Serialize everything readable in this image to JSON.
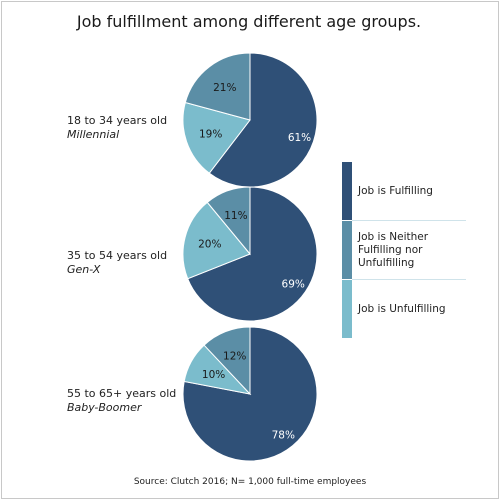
{
  "title": "Job fulfillment among different age groups.",
  "source": "Source:  Clutch 2016; N= 1,000 full-time employees",
  "colors": {
    "fulfilling": "#2f5077",
    "neither": "#5b8ea6",
    "unfulfilling": "#7bbccc",
    "stroke": "#ffffff"
  },
  "chart_data": {
    "type": "pie",
    "categories": [
      "Job is Fulfilling",
      "Job is Neither Fulfilling nor Unfulfilling",
      "Job is Unfulfilling"
    ],
    "groups": [
      {
        "label": "18 to 34 years old",
        "generation": "Millennial",
        "values": [
          61,
          21,
          19
        ]
      },
      {
        "label": "35 to 54 years old",
        "generation": "Gen-X",
        "values": [
          69,
          11,
          20
        ]
      },
      {
        "label": "55 to 65+ years old",
        "generation": "Baby-Boomer",
        "values": [
          78,
          12,
          10
        ]
      }
    ],
    "value_suffix": "%",
    "legend": "right"
  },
  "legend": {
    "items": [
      {
        "label": "Job is Fulfilling"
      },
      {
        "label": "Job is Neither Fulfilling nor Unfulfilling"
      },
      {
        "label": "Job is Unfulfilling"
      }
    ]
  }
}
